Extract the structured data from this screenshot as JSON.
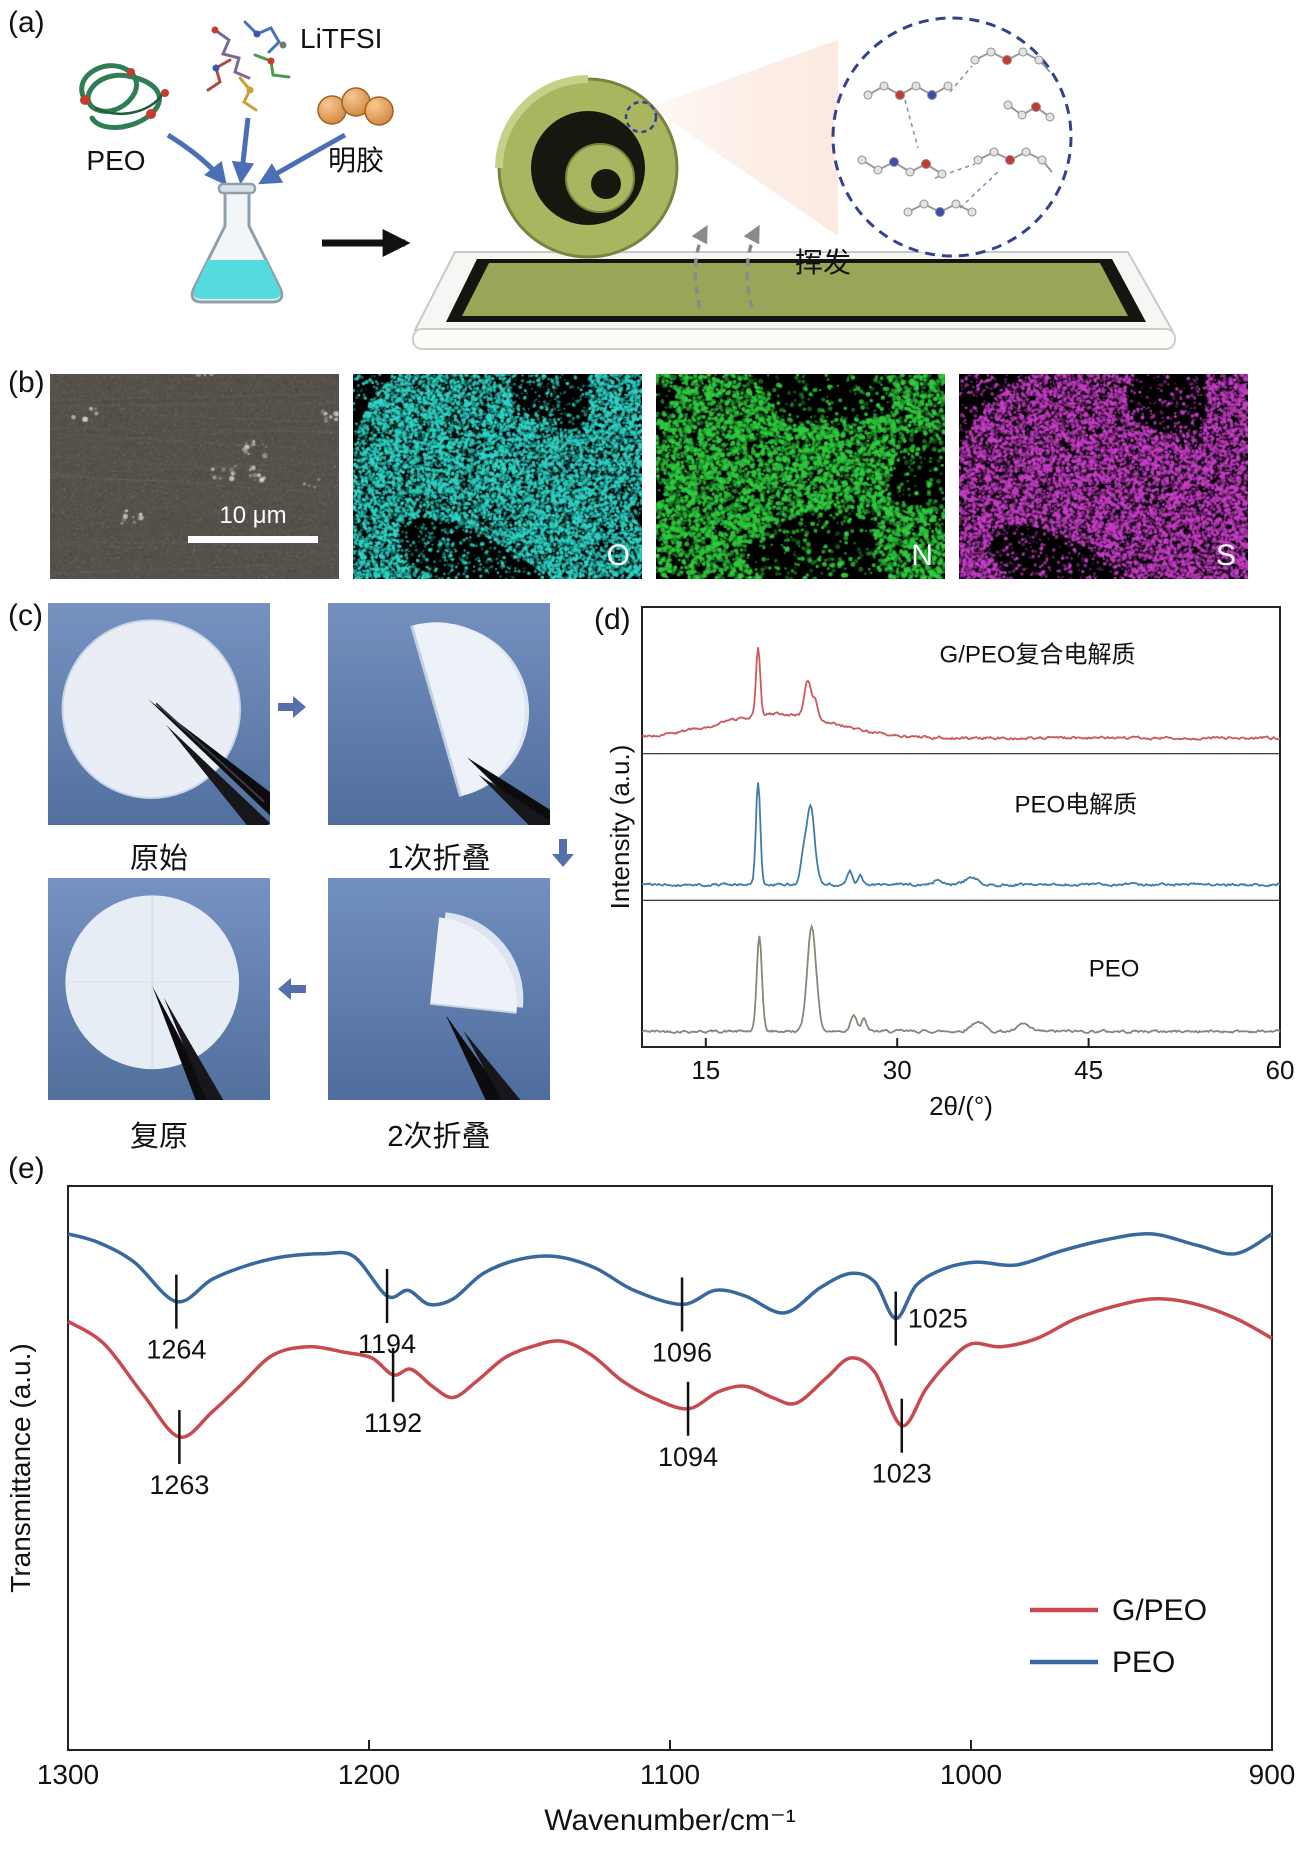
{
  "figure": {
    "panel_labels": {
      "a": "(a)",
      "b": "(b)",
      "c": "(c)",
      "d": "(d)",
      "e": "(e)"
    }
  },
  "panel_a": {
    "peo": "PEO",
    "litfsi": "LiTFSI",
    "gelatin": "明胶",
    "evaporate": "挥发"
  },
  "panel_b": {
    "scale_bar": "10 μm",
    "maps": [
      {
        "element": "O",
        "color": "#2fd6c8"
      },
      {
        "element": "N",
        "color": "#2ecc3e"
      },
      {
        "element": "S",
        "color": "#c93ec9"
      }
    ]
  },
  "panel_c": {
    "steps": [
      {
        "caption": "原始"
      },
      {
        "caption": "1次折叠"
      },
      {
        "caption": "复原"
      },
      {
        "caption": "2次折叠"
      }
    ]
  },
  "chart_data": [
    {
      "id": "xrd",
      "type": "line",
      "title": "",
      "xlabel": "2θ/(°)",
      "ylabel": "Intensity (a.u.)",
      "xlim": [
        10,
        60
      ],
      "xticks": [
        15,
        30,
        45,
        60
      ],
      "layout": "three stacked bands, shared x axis, no y ticks (a.u.)",
      "series": [
        {
          "name": "G/PEO复合电解质",
          "color": "#c9595f",
          "band": 0,
          "label_anchor": [
            41,
            0.38
          ],
          "broad_hump": {
            "center": 20.5,
            "height": 0.22,
            "width": 4.5
          },
          "peaks": [
            [
              19.1,
              0.62,
              0.16
            ],
            [
              23.0,
              0.34,
              0.28
            ],
            [
              23.6,
              0.16,
              0.18
            ]
          ]
        },
        {
          "name": "PEO电解质",
          "color": "#3f7ca8",
          "band": 1,
          "label_anchor": [
            44,
            0.4
          ],
          "peaks": [
            [
              19.1,
              0.95,
              0.17
            ],
            [
              22.6,
              0.2,
              0.2
            ],
            [
              23.2,
              0.72,
              0.33
            ],
            [
              26.3,
              0.13,
              0.2
            ],
            [
              27.1,
              0.1,
              0.18
            ],
            [
              33.2,
              0.05,
              0.3
            ],
            [
              35.8,
              0.07,
              0.45
            ]
          ]
        },
        {
          "name": "PEO",
          "color": "#8b8478",
          "band": 2,
          "label_anchor": [
            47,
            0.52
          ],
          "peaks": [
            [
              19.2,
              0.88,
              0.2
            ],
            [
              23.3,
              0.97,
              0.35
            ],
            [
              26.6,
              0.16,
              0.25
            ],
            [
              27.4,
              0.11,
              0.2
            ],
            [
              36.3,
              0.09,
              0.5
            ],
            [
              39.9,
              0.07,
              0.4
            ]
          ]
        }
      ]
    },
    {
      "id": "ftir",
      "type": "line",
      "title": "",
      "xlabel": "Wavenumber/cm⁻¹",
      "ylabel": "Transmittance (a.u.)",
      "xlim": [
        1300,
        900
      ],
      "x_reversed": true,
      "xticks": [
        1300,
        1200,
        1100,
        1000,
        900
      ],
      "series": [
        {
          "name": "G/PEO",
          "color": "#c84a50",
          "points": [
            [
              1300,
              0.76
            ],
            [
              1288,
              0.72
            ],
            [
              1275,
              0.63
            ],
            [
              1263,
              0.555
            ],
            [
              1252,
              0.6
            ],
            [
              1243,
              0.645
            ],
            [
              1232,
              0.7
            ],
            [
              1220,
              0.715
            ],
            [
              1208,
              0.705
            ],
            [
              1199,
              0.695
            ],
            [
              1192,
              0.665
            ],
            [
              1186,
              0.675
            ],
            [
              1179,
              0.645
            ],
            [
              1172,
              0.625
            ],
            [
              1164,
              0.655
            ],
            [
              1155,
              0.695
            ],
            [
              1146,
              0.715
            ],
            [
              1136,
              0.725
            ],
            [
              1126,
              0.7
            ],
            [
              1116,
              0.655
            ],
            [
              1106,
              0.625
            ],
            [
              1094,
              0.605
            ],
            [
              1084,
              0.635
            ],
            [
              1075,
              0.645
            ],
            [
              1066,
              0.625
            ],
            [
              1058,
              0.615
            ],
            [
              1048,
              0.66
            ],
            [
              1040,
              0.695
            ],
            [
              1032,
              0.67
            ],
            [
              1023,
              0.575
            ],
            [
              1015,
              0.64
            ],
            [
              1008,
              0.685
            ],
            [
              1000,
              0.72
            ],
            [
              990,
              0.715
            ],
            [
              978,
              0.73
            ],
            [
              965,
              0.765
            ],
            [
              950,
              0.79
            ],
            [
              938,
              0.8
            ],
            [
              925,
              0.79
            ],
            [
              912,
              0.765
            ],
            [
              900,
              0.73
            ]
          ]
        },
        {
          "name": "PEO",
          "color": "#38699e",
          "points": [
            [
              1300,
              0.915
            ],
            [
              1290,
              0.9
            ],
            [
              1278,
              0.865
            ],
            [
              1264,
              0.795
            ],
            [
              1252,
              0.835
            ],
            [
              1240,
              0.86
            ],
            [
              1228,
              0.875
            ],
            [
              1215,
              0.88
            ],
            [
              1205,
              0.875
            ],
            [
              1194,
              0.805
            ],
            [
              1187,
              0.815
            ],
            [
              1180,
              0.79
            ],
            [
              1172,
              0.8
            ],
            [
              1162,
              0.845
            ],
            [
              1150,
              0.87
            ],
            [
              1138,
              0.875
            ],
            [
              1125,
              0.855
            ],
            [
              1112,
              0.815
            ],
            [
              1096,
              0.79
            ],
            [
              1085,
              0.815
            ],
            [
              1075,
              0.805
            ],
            [
              1062,
              0.775
            ],
            [
              1050,
              0.82
            ],
            [
              1040,
              0.845
            ],
            [
              1032,
              0.83
            ],
            [
              1025,
              0.765
            ],
            [
              1018,
              0.825
            ],
            [
              1008,
              0.855
            ],
            [
              998,
              0.865
            ],
            [
              985,
              0.86
            ],
            [
              970,
              0.885
            ],
            [
              955,
              0.905
            ],
            [
              940,
              0.915
            ],
            [
              925,
              0.895
            ],
            [
              912,
              0.88
            ],
            [
              900,
              0.915
            ]
          ]
        }
      ],
      "annotations": [
        {
          "text": "1264",
          "x": 1264,
          "series": "PEO",
          "placement": "below"
        },
        {
          "text": "1194",
          "x": 1194,
          "series": "PEO",
          "placement": "below"
        },
        {
          "text": "1192",
          "x": 1192,
          "series": "G/PEO",
          "placement": "below"
        },
        {
          "text": "1096",
          "x": 1096,
          "series": "PEO",
          "placement": "below"
        },
        {
          "text": "1094",
          "x": 1094,
          "series": "G/PEO",
          "placement": "below"
        },
        {
          "text": "1025",
          "x": 1025,
          "series": "PEO",
          "placement": "right"
        },
        {
          "text": "1023",
          "x": 1023,
          "series": "G/PEO",
          "placement": "below"
        },
        {
          "text": "1263",
          "x": 1263,
          "series": "G/PEO",
          "placement": "below"
        }
      ],
      "legend": {
        "position": "bottom-right",
        "entries": [
          {
            "label": "G/PEO",
            "color": "#c84a50"
          },
          {
            "label": "PEO",
            "color": "#38699e"
          }
        ]
      }
    }
  ]
}
